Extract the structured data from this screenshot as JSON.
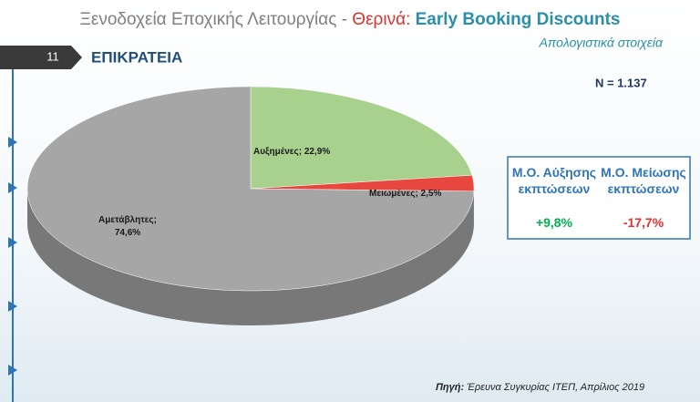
{
  "header": {
    "title_parts": [
      "Ξενοδοχεία Εποχικής Λειτουργίας - ",
      "Θερινά",
      ": ",
      "Early Booking Discounts"
    ],
    "subtitle": "Απολογιστικά στοιχεία",
    "slide_number": "11",
    "section": "ΕΠΙΚΡΑΤΕΙΑ"
  },
  "sample": "N = 1.137",
  "chart_data": {
    "type": "pie",
    "values": [
      22.9,
      2.5,
      74.6
    ],
    "value_labels": [
      "Αυξημένες; 22,9%",
      "Μειωμένες; 2,5%",
      "Αμετάβλητες; 74,6%"
    ],
    "colors": [
      "#a9d18e",
      "#e8473f",
      "#a6a6a6"
    ]
  },
  "stats": [
    {
      "label": "Μ.Ο. Αύξησης εκπτώσεων",
      "value": "+9,8%"
    },
    {
      "label": "Μ.Ο. Μείωσης εκπτώσεων",
      "value": "-17,7%"
    }
  ],
  "source": {
    "label": "Πηγή:",
    "text": " Έρευνα Συγκυρίας ΙΤΕΠ, Απρίλιος 2019"
  }
}
